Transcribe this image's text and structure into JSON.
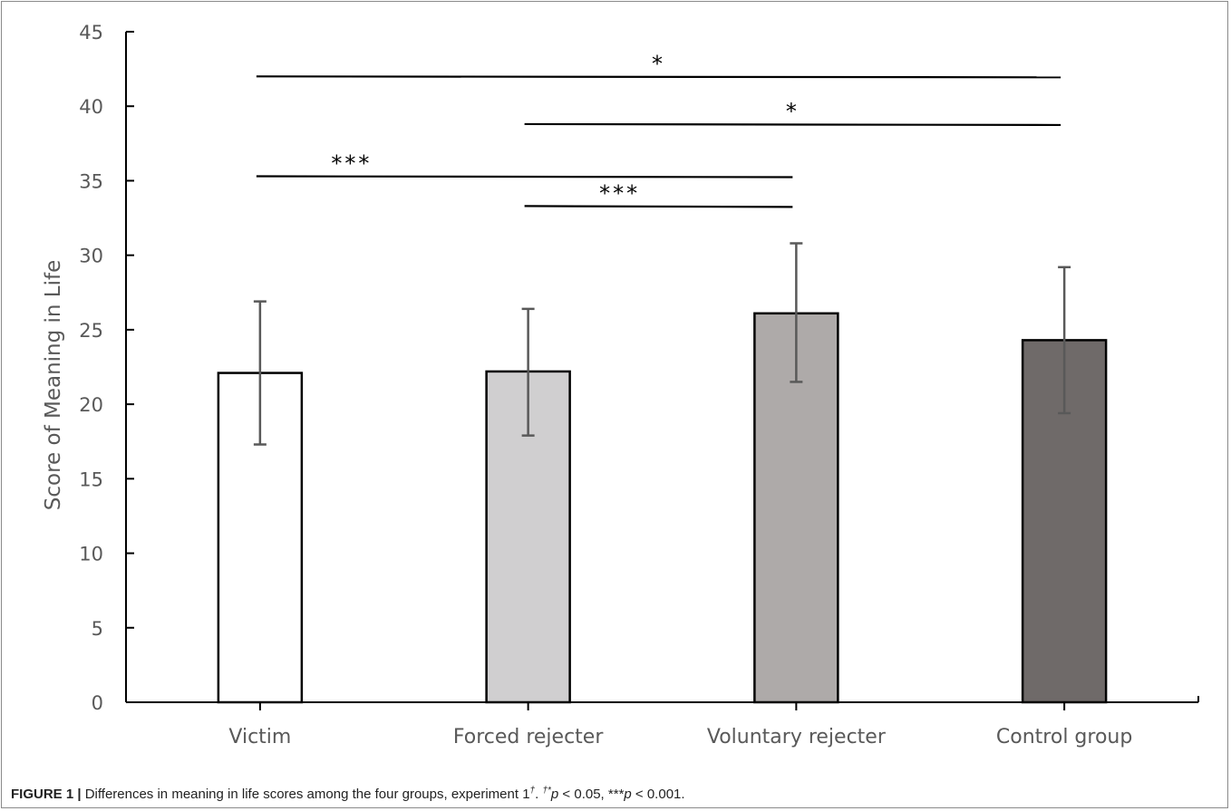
{
  "chart_data": {
    "type": "bar",
    "ylabel": "Score of Meaning in Life",
    "xlabel": "",
    "ylim": [
      0,
      45
    ],
    "yticks": [
      0,
      5,
      10,
      15,
      20,
      25,
      30,
      35,
      40,
      45
    ],
    "categories": [
      "Victim",
      "Forced rejecter",
      "Voluntary rejecter",
      "Control group"
    ],
    "values": [
      22.1,
      22.2,
      26.1,
      24.3
    ],
    "error_low": [
      17.3,
      17.9,
      21.5,
      19.4
    ],
    "error_high": [
      26.9,
      26.4,
      30.8,
      29.2
    ],
    "bar_colors": [
      "#ffffff",
      "#d0cfd0",
      "#aeaaa9",
      "#6f6a69"
    ],
    "grid": false,
    "significance": [
      {
        "from": 0,
        "to": 3,
        "y": 42.0,
        "label": "*"
      },
      {
        "from": 1,
        "to": 3,
        "y": 38.8,
        "label": "*"
      },
      {
        "from": 0,
        "to": 2,
        "y": 35.3,
        "label": "***"
      },
      {
        "from": 1,
        "to": 2,
        "y": 33.3,
        "label": "***"
      }
    ]
  },
  "caption": {
    "label": "FIGURE 1 |",
    "text": "Differences in meaning in life scores among the four groups, experiment 1",
    "dagger": "†",
    "sep": ". ",
    "sig_star": "*",
    "p1": "p",
    "p1_rest": " < 0.05, ***",
    "p2": "p",
    "p2_rest": " < 0.001."
  }
}
